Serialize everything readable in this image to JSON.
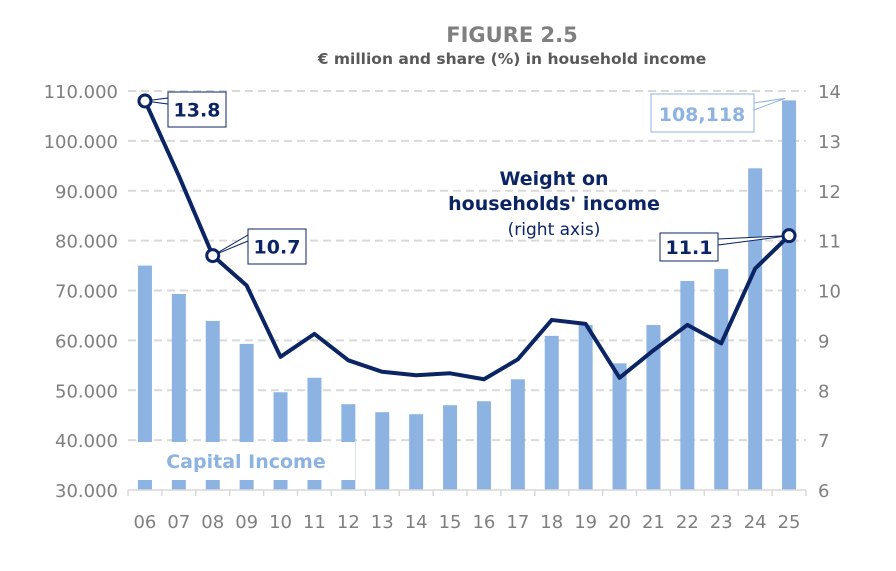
{
  "chart_data": {
    "type": "bar+line",
    "title": "FIGURE 2.5",
    "subtitle": "€ million and share (%) in household income",
    "categories": [
      "06",
      "07",
      "08",
      "09",
      "10",
      "11",
      "12",
      "13",
      "14",
      "15",
      "16",
      "17",
      "18",
      "19",
      "20",
      "21",
      "22",
      "23",
      "24",
      "25"
    ],
    "left_axis": {
      "ylim": [
        30000,
        110000
      ],
      "ticks": [
        "30.000",
        "40.000",
        "50.000",
        "60.000",
        "70.000",
        "80.000",
        "90.000",
        "100.000",
        "110.000"
      ],
      "tick_values": [
        30000,
        40000,
        50000,
        60000,
        70000,
        80000,
        90000,
        100000,
        110000
      ]
    },
    "right_axis": {
      "ylim": [
        6,
        14
      ],
      "ticks": [
        "6",
        "7",
        "8",
        "9",
        "10",
        "11",
        "12",
        "13",
        "14"
      ],
      "tick_values": [
        6,
        7,
        8,
        9,
        10,
        11,
        12,
        13,
        14
      ]
    },
    "grid": true,
    "series": [
      {
        "name": "Capital Income",
        "type": "bar",
        "axis": "left",
        "color": "#8db3e2",
        "values": [
          75000,
          69300,
          63900,
          59300,
          49600,
          52500,
          47200,
          45600,
          45200,
          47000,
          47800,
          52200,
          60900,
          63100,
          55400,
          63100,
          71900,
          74300,
          94500,
          108118
        ]
      },
      {
        "name": "Weight on households' income",
        "name_note": "(right axis)",
        "type": "line",
        "axis": "right",
        "color": "#0b2463",
        "values": [
          13.8,
          12.3,
          10.7,
          10.1,
          8.67,
          9.13,
          8.6,
          8.37,
          8.3,
          8.34,
          8.22,
          8.62,
          9.41,
          9.33,
          8.25,
          8.8,
          9.31,
          8.94,
          10.44,
          11.1
        ]
      }
    ],
    "annotations": [
      {
        "series": 1,
        "index": 0,
        "label": "13.8"
      },
      {
        "series": 1,
        "index": 2,
        "label": "10.7"
      },
      {
        "series": 1,
        "index": 19,
        "label": "11.1"
      },
      {
        "series": 0,
        "index": 19,
        "label": "108,118"
      }
    ],
    "legend_labels": {
      "bars": "Capital Income",
      "line_1": "Weight on",
      "line_2": "households' income",
      "line_3": "(right axis)"
    }
  }
}
